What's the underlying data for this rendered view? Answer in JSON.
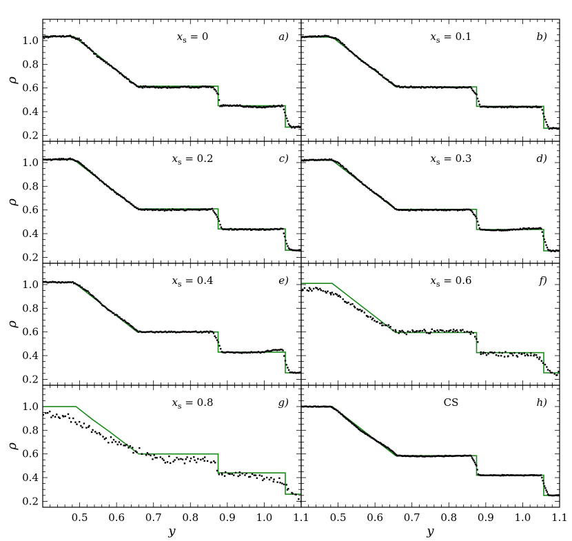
{
  "figure": {
    "x_label": "y",
    "y_label": "ρ",
    "x_ticks": [
      "0.5",
      "0.6",
      "0.7",
      "0.8",
      "0.9",
      "1.0",
      "1.1"
    ],
    "y_ticks": [
      "0.2",
      "0.4",
      "0.6",
      "0.8",
      "1.0"
    ],
    "colors": {
      "model": "#1a8a1a",
      "points": "#000000",
      "axes": "#000000"
    }
  },
  "chart_data": [
    {
      "type": "line",
      "panel_letter": "a)",
      "annotation_var": "x",
      "annotation_sub": "s",
      "annotation_value": "= 0",
      "xlim": [
        0.4,
        1.1
      ],
      "ylim": [
        0.15,
        1.18
      ],
      "model_line": {
        "x": [
          0.4,
          0.484,
          0.656,
          0.875,
          0.875,
          1.057,
          1.057,
          1.1
        ],
        "y": [
          1.035,
          1.035,
          0.615,
          0.615,
          0.45,
          0.45,
          0.27,
          0.27
        ]
      },
      "points_anchor": {
        "x": [
          0.4,
          0.47,
          0.5,
          0.53,
          0.56,
          0.6,
          0.64,
          0.66,
          0.72,
          0.86,
          0.875,
          0.88,
          0.92,
          0.96,
          1.0,
          1.05,
          1.06,
          1.07,
          1.1
        ],
        "y": [
          1.03,
          1.04,
          1.01,
          0.92,
          0.84,
          0.75,
          0.65,
          0.61,
          0.605,
          0.61,
          0.55,
          0.45,
          0.45,
          0.44,
          0.44,
          0.45,
          0.35,
          0.27,
          0.27
        ]
      },
      "noise": 0.01,
      "point_count": 260
    },
    {
      "type": "line",
      "panel_letter": "b)",
      "annotation_var": "x",
      "annotation_sub": "s",
      "annotation_value": "= 0.1",
      "xlim": [
        0.4,
        1.1
      ],
      "ylim": [
        0.15,
        1.18
      ],
      "model_line": {
        "x": [
          0.4,
          0.484,
          0.656,
          0.875,
          0.875,
          1.057,
          1.057,
          1.1
        ],
        "y": [
          1.03,
          1.03,
          0.61,
          0.61,
          0.445,
          0.445,
          0.26,
          0.26
        ]
      },
      "points_anchor": {
        "x": [
          0.4,
          0.47,
          0.5,
          0.53,
          0.56,
          0.6,
          0.64,
          0.66,
          0.72,
          0.86,
          0.875,
          0.885,
          0.92,
          0.96,
          1.0,
          1.05,
          1.06,
          1.07,
          1.1
        ],
        "y": [
          1.03,
          1.04,
          1.01,
          0.92,
          0.84,
          0.75,
          0.65,
          0.61,
          0.605,
          0.605,
          0.54,
          0.445,
          0.44,
          0.44,
          0.44,
          0.44,
          0.34,
          0.26,
          0.26
        ]
      },
      "noise": 0.008,
      "point_count": 260
    },
    {
      "type": "line",
      "panel_letter": "c)",
      "annotation_var": "x",
      "annotation_sub": "s",
      "annotation_value": "= 0.2",
      "xlim": [
        0.4,
        1.1
      ],
      "ylim": [
        0.15,
        1.18
      ],
      "model_line": {
        "x": [
          0.4,
          0.484,
          0.656,
          0.875,
          0.875,
          1.057,
          1.057,
          1.1
        ],
        "y": [
          1.025,
          1.025,
          0.61,
          0.61,
          0.44,
          0.44,
          0.26,
          0.26
        ]
      },
      "points_anchor": {
        "x": [
          0.4,
          0.48,
          0.5,
          0.53,
          0.56,
          0.6,
          0.64,
          0.66,
          0.72,
          0.86,
          0.875,
          0.885,
          0.92,
          0.96,
          1.0,
          1.05,
          1.06,
          1.07,
          1.1
        ],
        "y": [
          1.025,
          1.03,
          1.0,
          0.92,
          0.84,
          0.74,
          0.65,
          0.605,
          0.6,
          0.605,
          0.53,
          0.44,
          0.435,
          0.435,
          0.435,
          0.44,
          0.32,
          0.26,
          0.26
        ]
      },
      "noise": 0.008,
      "point_count": 260
    },
    {
      "type": "line",
      "panel_letter": "d)",
      "annotation_var": "x",
      "annotation_sub": "s",
      "annotation_value": "= 0.3",
      "xlim": [
        0.4,
        1.1
      ],
      "ylim": [
        0.15,
        1.18
      ],
      "model_line": {
        "x": [
          0.4,
          0.484,
          0.656,
          0.875,
          0.875,
          1.057,
          1.057,
          1.1
        ],
        "y": [
          1.02,
          1.02,
          0.605,
          0.605,
          0.435,
          0.435,
          0.255,
          0.255
        ]
      },
      "points_anchor": {
        "x": [
          0.4,
          0.48,
          0.5,
          0.53,
          0.56,
          0.6,
          0.64,
          0.66,
          0.72,
          0.86,
          0.875,
          0.885,
          0.92,
          0.96,
          1.0,
          1.05,
          1.06,
          1.07,
          1.1
        ],
        "y": [
          1.02,
          1.025,
          1.0,
          0.92,
          0.84,
          0.74,
          0.65,
          0.6,
          0.6,
          0.6,
          0.53,
          0.435,
          0.43,
          0.43,
          0.44,
          0.445,
          0.33,
          0.255,
          0.255
        ]
      },
      "noise": 0.008,
      "point_count": 260
    },
    {
      "type": "line",
      "panel_letter": "e)",
      "annotation_var": "x",
      "annotation_sub": "s",
      "annotation_value": "= 0.4",
      "xlim": [
        0.4,
        1.1
      ],
      "ylim": [
        0.15,
        1.18
      ],
      "model_line": {
        "x": [
          0.4,
          0.484,
          0.656,
          0.875,
          0.875,
          1.057,
          1.057,
          1.1
        ],
        "y": [
          1.02,
          1.02,
          0.6,
          0.6,
          0.43,
          0.43,
          0.255,
          0.255
        ]
      },
      "points_anchor": {
        "x": [
          0.4,
          0.48,
          0.5,
          0.53,
          0.56,
          0.6,
          0.64,
          0.66,
          0.72,
          0.86,
          0.875,
          0.885,
          0.92,
          0.96,
          1.0,
          1.03,
          1.05,
          1.06,
          1.07,
          1.1
        ],
        "y": [
          1.02,
          1.02,
          0.99,
          0.92,
          0.83,
          0.74,
          0.65,
          0.6,
          0.6,
          0.6,
          0.52,
          0.43,
          0.425,
          0.425,
          0.43,
          0.45,
          0.45,
          0.32,
          0.255,
          0.255
        ]
      },
      "noise": 0.008,
      "point_count": 220
    },
    {
      "type": "scatter",
      "panel_letter": "f)",
      "annotation_var": "x",
      "annotation_sub": "s",
      "annotation_value": "= 0.6",
      "xlim": [
        0.4,
        1.1
      ],
      "ylim": [
        0.15,
        1.18
      ],
      "model_line": {
        "x": [
          0.4,
          0.484,
          0.656,
          0.875,
          0.875,
          1.057,
          1.057,
          1.1
        ],
        "y": [
          1.01,
          1.01,
          0.595,
          0.595,
          0.425,
          0.425,
          0.255,
          0.255
        ]
      },
      "points_anchor": {
        "x": [
          0.4,
          0.45,
          0.5,
          0.55,
          0.6,
          0.66,
          0.75,
          0.82,
          0.87,
          0.885,
          0.95,
          1.0,
          1.04,
          1.06,
          1.08,
          1.1
        ],
        "y": [
          0.97,
          0.96,
          0.91,
          0.8,
          0.7,
          0.6,
          0.605,
          0.61,
          0.59,
          0.42,
          0.41,
          0.41,
          0.4,
          0.32,
          0.25,
          0.24
        ]
      },
      "noise": 0.028,
      "point_count": 170
    },
    {
      "type": "scatter",
      "panel_letter": "g)",
      "annotation_var": "x",
      "annotation_sub": "s",
      "annotation_value": "= 0.8",
      "xlim": [
        0.4,
        1.1
      ],
      "ylim": [
        0.15,
        1.18
      ],
      "model_line": {
        "x": [
          0.4,
          0.49,
          0.535,
          0.58,
          0.66,
          0.875,
          0.875,
          1.057,
          1.057,
          1.1
        ],
        "y": [
          1.0,
          1.0,
          0.89,
          0.79,
          0.6,
          0.6,
          0.44,
          0.44,
          0.26,
          0.26
        ]
      },
      "points_anchor": {
        "x": [
          0.4,
          0.45,
          0.5,
          0.55,
          0.6,
          0.66,
          0.72,
          0.8,
          0.86,
          0.88,
          0.95,
          1.0,
          1.05,
          1.08,
          1.1
        ],
        "y": [
          0.94,
          0.92,
          0.86,
          0.77,
          0.7,
          0.62,
          0.55,
          0.55,
          0.54,
          0.44,
          0.42,
          0.4,
          0.36,
          0.27,
          0.22
        ]
      },
      "noise": 0.045,
      "point_count": 140
    },
    {
      "type": "line",
      "panel_letter": "h)",
      "annotation_text": "CS",
      "xlim": [
        0.4,
        1.1
      ],
      "ylim": [
        0.15,
        1.18
      ],
      "model_line": {
        "x": [
          0.4,
          0.484,
          0.656,
          0.875,
          0.875,
          1.057,
          1.057,
          1.1
        ],
        "y": [
          1.0,
          1.0,
          0.585,
          0.585,
          0.42,
          0.42,
          0.25,
          0.25
        ]
      },
      "points_anchor": {
        "x": [
          0.4,
          0.48,
          0.5,
          0.53,
          0.56,
          0.6,
          0.64,
          0.66,
          0.72,
          0.86,
          0.875,
          0.88,
          0.92,
          0.96,
          1.0,
          1.05,
          1.06,
          1.07,
          1.1
        ],
        "y": [
          1.0,
          1.0,
          0.96,
          0.88,
          0.8,
          0.72,
          0.64,
          0.585,
          0.58,
          0.585,
          0.5,
          0.42,
          0.42,
          0.42,
          0.42,
          0.42,
          0.32,
          0.25,
          0.25
        ]
      },
      "noise": 0.005,
      "point_count": 300
    }
  ]
}
